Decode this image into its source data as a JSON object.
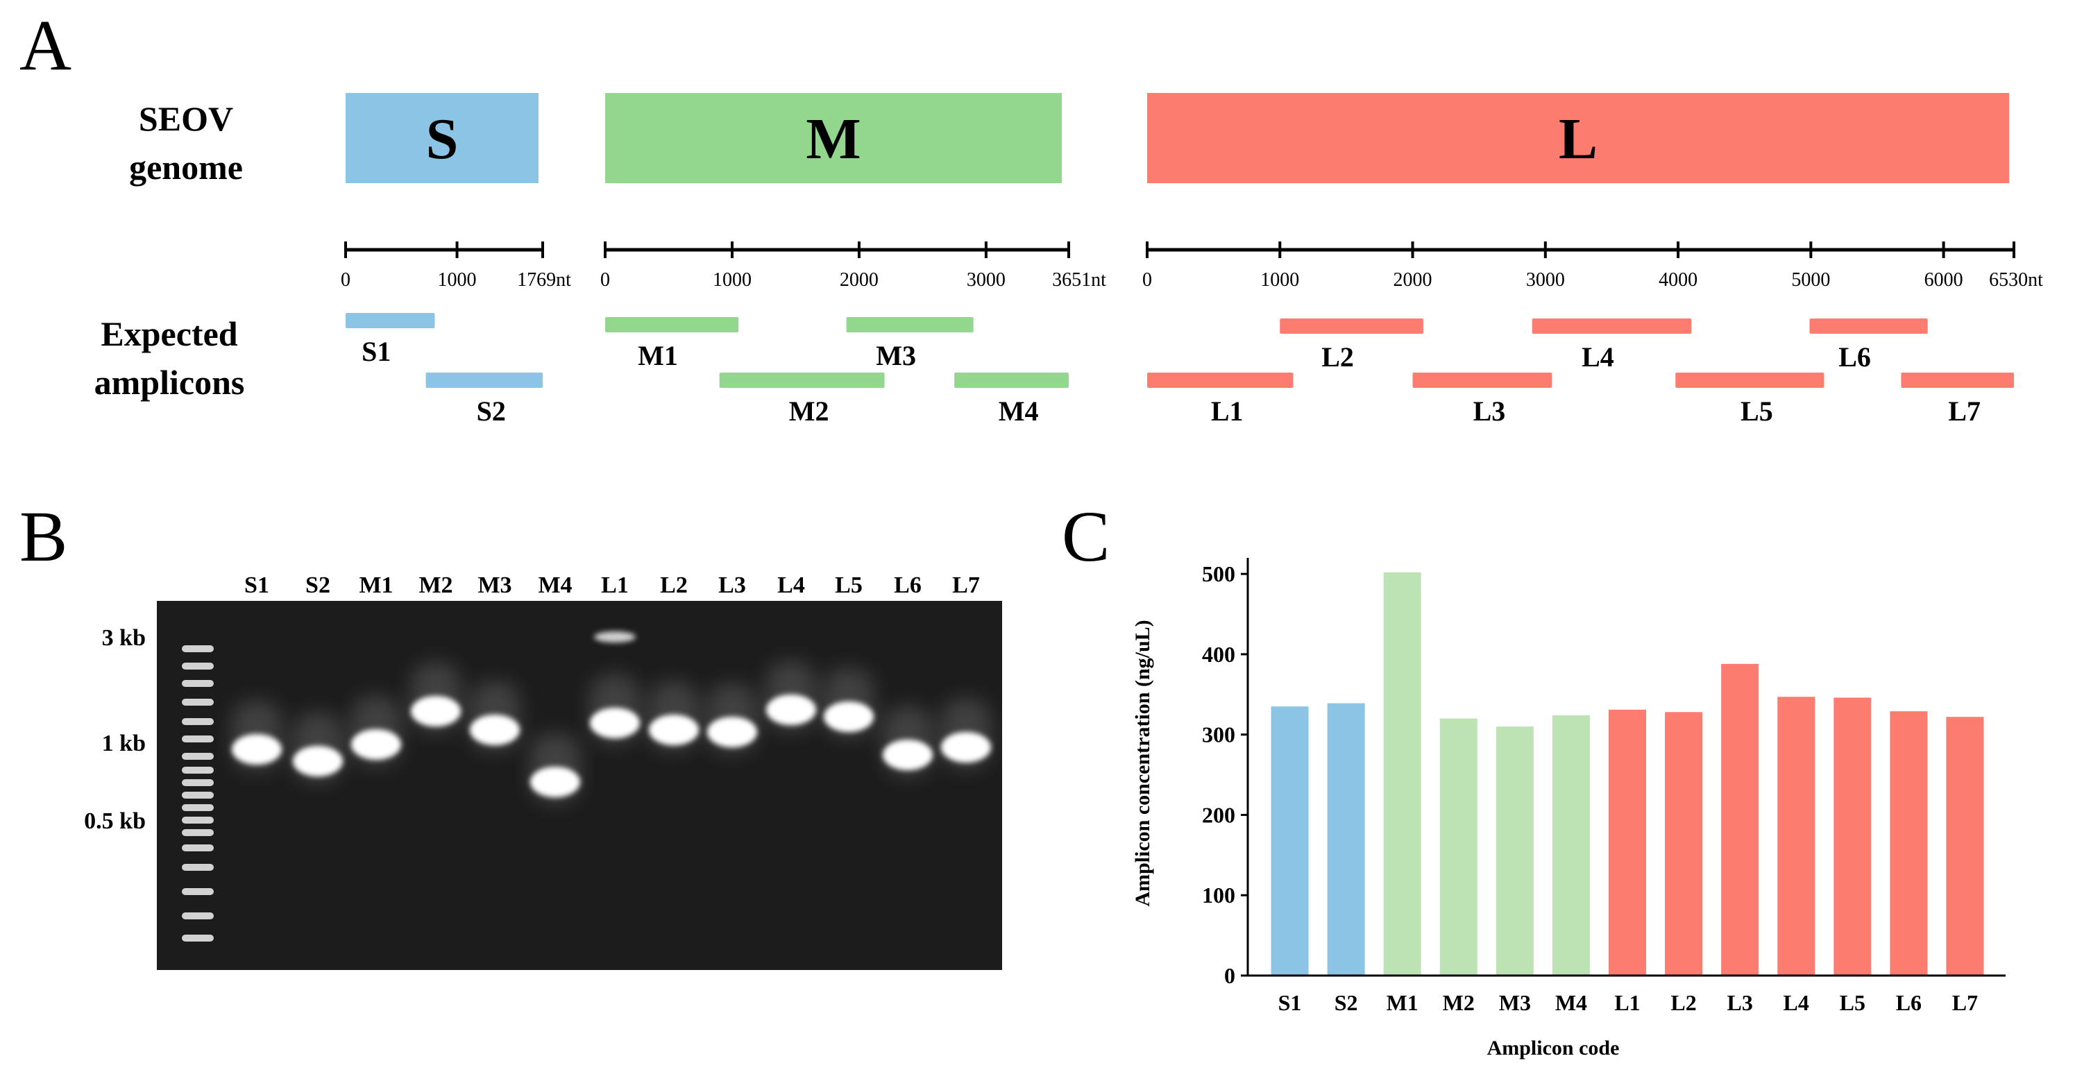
{
  "panels": {
    "a": "A",
    "b": "B",
    "c": "C"
  },
  "panel_a": {
    "genome_label_line1": "SEOV",
    "genome_label_line2": "genome",
    "amplicons_label_line1": "Expected",
    "amplicons_label_line2": "amplicons",
    "segments": [
      {
        "name": "S",
        "length_nt": 1769,
        "color": "#8CC4E6",
        "ticks": [
          0,
          1000
        ],
        "end_label": "1769nt",
        "amplicons": [
          {
            "name": "S1",
            "start": 0,
            "end": 800
          },
          {
            "name": "S2",
            "start": 720,
            "end": 1769
          }
        ]
      },
      {
        "name": "M",
        "length_nt": 3651,
        "color": "#93D68D",
        "ticks": [
          0,
          1000,
          2000,
          3000
        ],
        "end_label": "3651nt",
        "amplicons": [
          {
            "name": "M1",
            "start": 0,
            "end": 1050
          },
          {
            "name": "M2",
            "start": 900,
            "end": 2200
          },
          {
            "name": "M3",
            "start": 1900,
            "end": 2900
          },
          {
            "name": "M4",
            "start": 2750,
            "end": 3651
          }
        ]
      },
      {
        "name": "L",
        "length_nt": 6530,
        "color": "#FD7C70",
        "ticks": [
          0,
          1000,
          2000,
          3000,
          4000,
          5000,
          6000
        ],
        "end_label": "6530nt",
        "amplicons": [
          {
            "name": "L1",
            "start": 0,
            "end": 1100
          },
          {
            "name": "L2",
            "start": 1000,
            "end": 2080
          },
          {
            "name": "L3",
            "start": 2000,
            "end": 3050
          },
          {
            "name": "L4",
            "start": 2900,
            "end": 4100
          },
          {
            "name": "L5",
            "start": 3980,
            "end": 5100
          },
          {
            "name": "L6",
            "start": 4990,
            "end": 5880
          },
          {
            "name": "L7",
            "start": 5680,
            "end": 6530
          }
        ]
      }
    ]
  },
  "panel_b": {
    "lanes": [
      "S1",
      "S2",
      "M1",
      "M2",
      "M3",
      "M4",
      "L1",
      "L2",
      "L3",
      "L4",
      "L5",
      "L6",
      "L7"
    ],
    "markers": [
      "3 kb",
      "1 kb",
      "0.5 kb"
    ]
  },
  "chart_data": {
    "type": "bar",
    "categories": [
      "S1",
      "S2",
      "M1",
      "M2",
      "M3",
      "M4",
      "L1",
      "L2",
      "L3",
      "L4",
      "L5",
      "L6",
      "L7"
    ],
    "values": [
      335,
      339,
      502,
      320,
      310,
      324,
      331,
      328,
      388,
      347,
      346,
      329,
      322
    ],
    "colors": [
      "#8CC4E6",
      "#8CC4E6",
      "#BDE3B4",
      "#BDE3B4",
      "#BDE3B4",
      "#BDE3B4",
      "#FD7C70",
      "#FD7C70",
      "#FD7C70",
      "#FD7C70",
      "#FD7C70",
      "#FD7C70",
      "#FD7C70"
    ],
    "xlabel": "Amplicon code",
    "ylabel": "Amplicon concentration (ng/uL)",
    "ylim": [
      0,
      520
    ],
    "yticks": [
      0,
      100,
      200,
      300,
      400,
      500
    ],
    "grid": false
  }
}
